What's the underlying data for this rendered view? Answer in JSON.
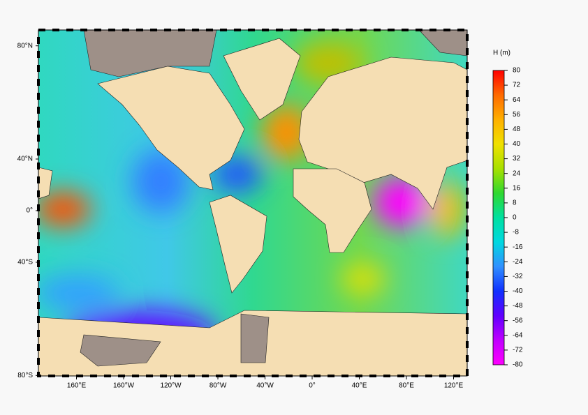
{
  "map": {
    "lat_ticks": [
      {
        "value": 80,
        "label": "80°N"
      },
      {
        "value": 40,
        "label": "40°N"
      },
      {
        "value": 0,
        "label": "0°"
      },
      {
        "value": -40,
        "label": "40°S"
      },
      {
        "value": -80,
        "label": "80°S"
      }
    ],
    "lon_ticks": [
      {
        "value": 160,
        "label": "160°E"
      },
      {
        "value": -160,
        "label": "160°W"
      },
      {
        "value": -120,
        "label": "120°W"
      },
      {
        "value": -80,
        "label": "80°W"
      },
      {
        "value": -40,
        "label": "40°W"
      },
      {
        "value": 0,
        "label": "0°"
      },
      {
        "value": 40,
        "label": "40°E"
      },
      {
        "value": 80,
        "label": "80°E"
      },
      {
        "value": 120,
        "label": "120°E"
      }
    ]
  },
  "colorbar": {
    "title": "H (m)",
    "ticks": [
      80,
      72,
      64,
      56,
      48,
      40,
      32,
      24,
      16,
      8,
      0,
      -8,
      -16,
      -24,
      -32,
      -40,
      -48,
      -56,
      -64,
      -72,
      -80
    ],
    "colors": [
      "#ff0000",
      "#ff6a00",
      "#ffb000",
      "#f0e000",
      "#a8e000",
      "#30d830",
      "#00e0a0",
      "#00d8e0",
      "#3090ff",
      "#1030ff",
      "#6000ff",
      "#c000ff",
      "#ff00ff"
    ]
  }
}
